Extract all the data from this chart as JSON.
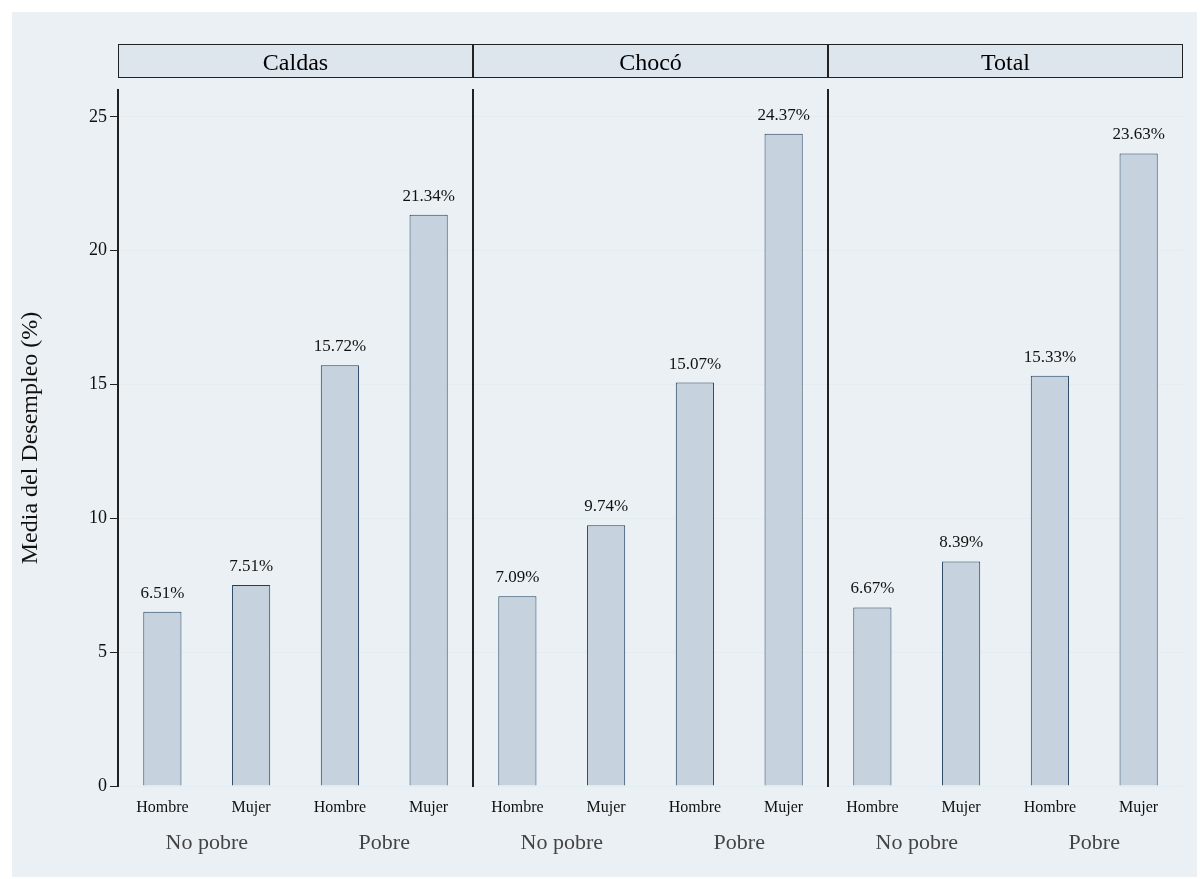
{
  "chart_data": [
    {
      "type": "bar",
      "title": "Caldas",
      "ylabel": "Media del Desempleo (%)",
      "categories": [
        "Hombre",
        "Mujer",
        "Hombre",
        "Mujer"
      ],
      "values": [
        6.51,
        7.51,
        15.72,
        21.34
      ],
      "value_labels": [
        "6.51%",
        "7.51%",
        "15.72%",
        "21.34%"
      ],
      "color": "#c6d2de",
      "annotations": [
        "No pobre",
        "Pobre"
      ],
      "ylim": [
        0,
        26
      ],
      "yticks": [
        0,
        5,
        10,
        15,
        20,
        25
      ],
      "grid": "y"
    },
    {
      "type": "bar",
      "title": "Chocó",
      "categories": [
        "Hombre",
        "Mujer",
        "Hombre",
        "Mujer"
      ],
      "values": [
        7.09,
        9.74,
        15.07,
        24.37
      ],
      "value_labels": [
        "7.09%",
        "9.74%",
        "15.07%",
        "24.37%"
      ],
      "color": "#c6d2de",
      "annotations": [
        "No pobre",
        "Pobre"
      ],
      "ylim": [
        0,
        26
      ],
      "yticks": [
        0,
        5,
        10,
        15,
        20,
        25
      ],
      "grid": "y",
      "tick_labels": "x"
    },
    {
      "type": "bar",
      "title": "Total",
      "categories": [
        "Hombre",
        "Mujer",
        "Hombre",
        "Mujer"
      ],
      "values": [
        6.67,
        8.39,
        15.33,
        23.63
      ],
      "value_labels": [
        "6.67%",
        "8.39%",
        "15.33%",
        "23.63%"
      ],
      "color": "#c6d2de",
      "annotations": [
        "No pobre",
        "Pobre"
      ],
      "ylim": [
        0,
        26
      ],
      "yticks": [
        0,
        5,
        10,
        15,
        20,
        25
      ],
      "grid": "y",
      "tick_labels": "x"
    }
  ]
}
